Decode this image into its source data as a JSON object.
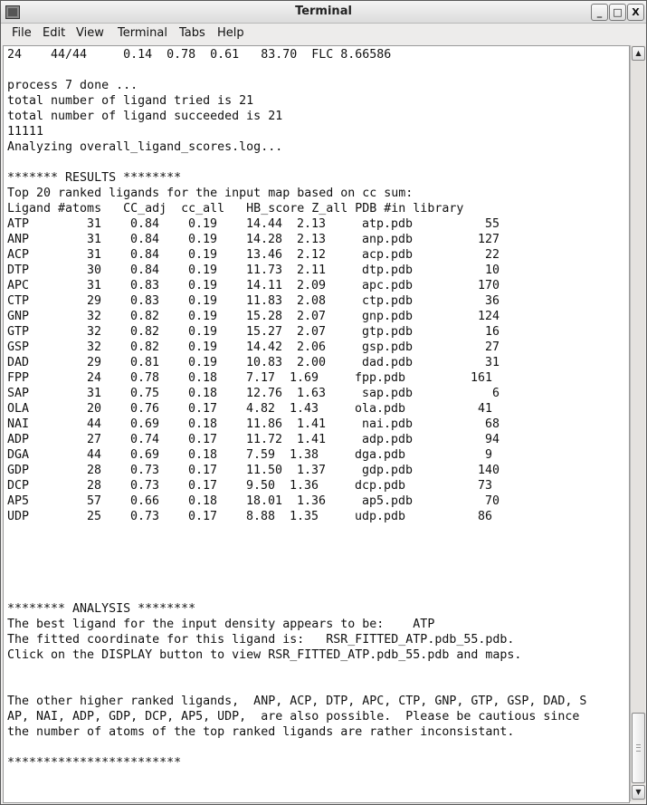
{
  "window": {
    "title": "Terminal"
  },
  "menu": [
    {
      "label": "File"
    },
    {
      "label": "Edit"
    },
    {
      "label": "View"
    },
    {
      "label": "Terminal"
    },
    {
      "label": "Tabs"
    },
    {
      "label": "Help"
    }
  ],
  "terminal": {
    "pre_lines": [
      "24    44/44     0.14  0.78  0.61   83.70  FLC 8.66586",
      "",
      "process 7 done ...",
      "total number of ligand tried is 21",
      "total number of ligand succeeded is 21",
      "11111",
      "Analyzing overall_ligand_scores.log...",
      "",
      "******* RESULTS ********",
      "Top 20 ranked ligands for the input map based on cc sum:",
      "Ligand #atoms   CC_adj  cc_all   HB_score Z_all PDB #in library"
    ],
    "rows": [
      [
        "ATP",
        "31",
        "0.84",
        "0.19",
        "14.44",
        "2.13",
        "atp.pdb",
        "55"
      ],
      [
        "ANP",
        "31",
        "0.84",
        "0.19",
        "14.28",
        "2.13",
        "anp.pdb",
        "127"
      ],
      [
        "ACP",
        "31",
        "0.84",
        "0.19",
        "13.46",
        "2.12",
        "acp.pdb",
        "22"
      ],
      [
        "DTP",
        "30",
        "0.84",
        "0.19",
        "11.73",
        "2.11",
        "dtp.pdb",
        "10"
      ],
      [
        "APC",
        "31",
        "0.83",
        "0.19",
        "14.11",
        "2.09",
        "apc.pdb",
        "170"
      ],
      [
        "CTP",
        "29",
        "0.83",
        "0.19",
        "11.83",
        "2.08",
        "ctp.pdb",
        "36"
      ],
      [
        "GNP",
        "32",
        "0.82",
        "0.19",
        "15.28",
        "2.07",
        "gnp.pdb",
        "124"
      ],
      [
        "GTP",
        "32",
        "0.82",
        "0.19",
        "15.27",
        "2.07",
        "gtp.pdb",
        "16"
      ],
      [
        "GSP",
        "32",
        "0.82",
        "0.19",
        "14.42",
        "2.06",
        "gsp.pdb",
        "27"
      ],
      [
        "DAD",
        "29",
        "0.81",
        "0.19",
        "10.83",
        "2.00",
        "dad.pdb",
        "31"
      ],
      [
        "FPP",
        "24",
        "0.78",
        "0.18",
        "7.17",
        "1.69",
        "fpp.pdb",
        "161"
      ],
      [
        "SAP",
        "31",
        "0.75",
        "0.18",
        "12.76",
        "1.63",
        "sap.pdb",
        "6"
      ],
      [
        "OLA",
        "20",
        "0.76",
        "0.17",
        "4.82",
        "1.43",
        "ola.pdb",
        "41"
      ],
      [
        "NAI",
        "44",
        "0.69",
        "0.18",
        "11.86",
        "1.41",
        "nai.pdb",
        "68"
      ],
      [
        "ADP",
        "27",
        "0.74",
        "0.17",
        "11.72",
        "1.41",
        "adp.pdb",
        "94"
      ],
      [
        "DGA",
        "44",
        "0.69",
        "0.18",
        "7.59",
        "1.38",
        "dga.pdb",
        "9"
      ],
      [
        "GDP",
        "28",
        "0.73",
        "0.17",
        "11.50",
        "1.37",
        "gdp.pdb",
        "140"
      ],
      [
        "DCP",
        "28",
        "0.73",
        "0.17",
        "9.50",
        "1.36",
        "dcp.pdb",
        "73"
      ],
      [
        "AP5",
        "57",
        "0.66",
        "0.18",
        "18.01",
        "1.36",
        "ap5.pdb",
        "70"
      ],
      [
        "UDP",
        "25",
        "0.73",
        "0.17",
        "8.88",
        "1.35",
        "udp.pdb",
        "86"
      ]
    ],
    "post_lines": [
      "",
      "",
      "",
      "",
      "",
      "******** ANALYSIS ********",
      "The best ligand for the input density appears to be:    ATP",
      "The fitted coordinate for this ligand is:   RSR_FITTED_ATP.pdb_55.pdb.",
      "Click on the DISPLAY button to view RSR_FITTED_ATP.pdb_55.pdb and maps.",
      "",
      "",
      "The other higher ranked ligands,  ANP, ACP, DTP, APC, CTP, GNP, GTP, GSP, DAD, S",
      "AP, NAI, ADP, GDP, DCP, AP5, UDP,  are also possible.  Please be cautious since",
      "the number of atoms of the top ranked ligands are rather inconsistant.",
      "",
      "************************"
    ]
  },
  "scrollbar": {
    "position_fraction": 0.94
  }
}
